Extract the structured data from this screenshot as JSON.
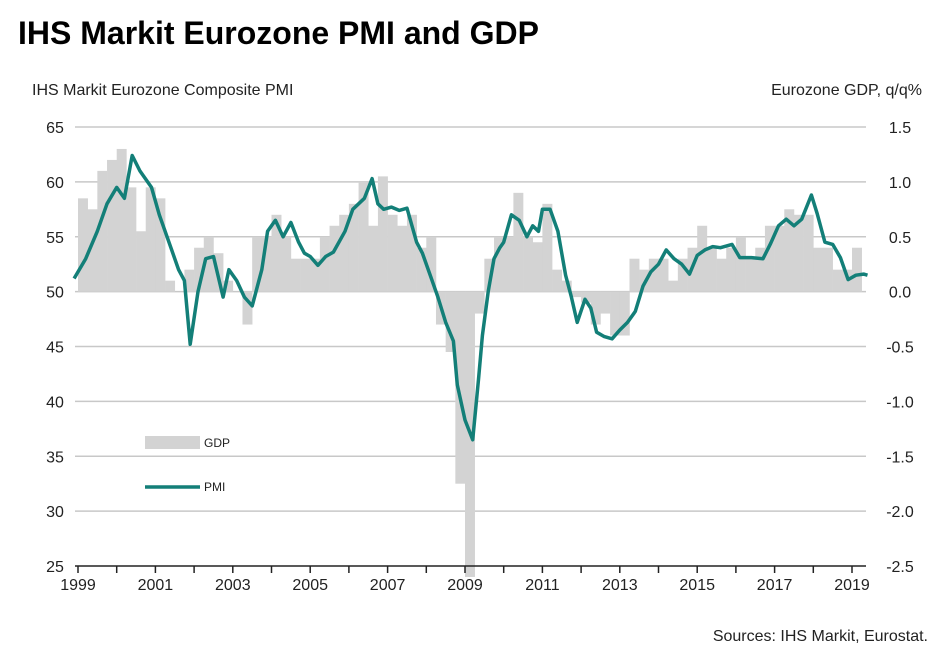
{
  "chart_data": {
    "type": "bar+line",
    "title": "IHS Markit Eurozone PMI and GDP",
    "left_axis_label": "IHS Markit Eurozone Composite PMI",
    "right_axis_label": "Eurozone GDP, q/q%",
    "source": "Sources: IHS Markit, Eurostat.",
    "left_ylim": [
      25,
      65
    ],
    "left_ticks": [
      "65",
      "60",
      "55",
      "50",
      "45",
      "40",
      "35",
      "30",
      "25"
    ],
    "right_ylim": [
      -2.5,
      1.5
    ],
    "right_ticks": [
      "1.5",
      "1.0",
      "0.5",
      "0.0",
      "-0.5",
      "-1.0",
      "-1.5",
      "-2.0",
      "-2.5"
    ],
    "x_ticks": [
      "1999",
      "2001",
      "2003",
      "2005",
      "2007",
      "2009",
      "2011",
      "2013",
      "2015",
      "2017",
      "2019"
    ],
    "grid": true,
    "legend": [
      {
        "name": "GDP",
        "kind": "bar"
      },
      {
        "name": "PMI",
        "kind": "line"
      }
    ],
    "legend_position": "bottom-left",
    "colors": {
      "gdp": "#d3d3d3",
      "pmi": "#137f78",
      "grid": "#c8c8c8"
    },
    "series": [
      {
        "name": "GDP",
        "axis": "right",
        "start_year": 1999,
        "frequency": "quarterly",
        "values": [
          0.85,
          0.75,
          1.1,
          1.2,
          1.3,
          0.95,
          0.55,
          0.95,
          0.85,
          0.1,
          0.0,
          0.2,
          0.4,
          0.5,
          0.35,
          0.1,
          0.0,
          -0.3,
          0.5,
          0.5,
          0.7,
          0.5,
          0.3,
          0.3,
          0.3,
          0.5,
          0.6,
          0.7,
          0.8,
          1.0,
          0.6,
          1.05,
          0.7,
          0.6,
          0.7,
          0.4,
          0.5,
          -0.3,
          -0.55,
          -1.75,
          -2.6,
          -0.2,
          0.3,
          0.5,
          0.5,
          0.9,
          0.5,
          0.45,
          0.8,
          0.2,
          0.1,
          -0.05,
          -0.1,
          -0.3,
          -0.2,
          -0.4,
          -0.4,
          0.3,
          0.2,
          0.3,
          0.3,
          0.1,
          0.3,
          0.4,
          0.6,
          0.4,
          0.3,
          0.4,
          0.5,
          0.3,
          0.4,
          0.6,
          0.6,
          0.75,
          0.7,
          0.7,
          0.4,
          0.4,
          0.2,
          0.2,
          0.4
        ]
      },
      {
        "name": "PMI",
        "axis": "left",
        "x": [
          1998.9,
          1999.2,
          1999.5,
          1999.75,
          2000.0,
          2000.2,
          2000.4,
          2000.6,
          2000.9,
          2001.1,
          2001.4,
          2001.6,
          2001.75,
          2001.9,
          2002.1,
          2002.3,
          2002.5,
          2002.75,
          2002.9,
          2003.1,
          2003.3,
          2003.5,
          2003.75,
          2003.9,
          2004.1,
          2004.3,
          2004.5,
          2004.7,
          2004.85,
          2005.0,
          2005.2,
          2005.4,
          2005.6,
          2005.9,
          2006.1,
          2006.4,
          2006.6,
          2006.75,
          2006.9,
          2007.1,
          2007.3,
          2007.5,
          2007.75,
          2007.9,
          2008.1,
          2008.3,
          2008.5,
          2008.7,
          2008.8,
          2009.0,
          2009.2,
          2009.35,
          2009.45,
          2009.6,
          2009.75,
          2009.9,
          2010.0,
          2010.2,
          2010.4,
          2010.6,
          2010.75,
          2010.9,
          2011.0,
          2011.2,
          2011.4,
          2011.6,
          2011.75,
          2011.9,
          2012.1,
          2012.25,
          2012.4,
          2012.6,
          2012.8,
          2013.0,
          2013.2,
          2013.4,
          2013.6,
          2013.8,
          2014.0,
          2014.2,
          2014.4,
          2014.6,
          2014.8,
          2015.0,
          2015.2,
          2015.4,
          2015.6,
          2015.9,
          2016.1,
          2016.4,
          2016.7,
          2016.9,
          2017.1,
          2017.3,
          2017.5,
          2017.7,
          2017.95,
          2018.1,
          2018.3,
          2018.5,
          2018.7,
          2018.9,
          2019.1,
          2019.3,
          2019.4
        ],
        "values": [
          51.2,
          53,
          55.5,
          58,
          59.5,
          58.5,
          62.4,
          61,
          59.5,
          57,
          54,
          52,
          51,
          45.2,
          50,
          53,
          53.2,
          49.5,
          52,
          51,
          49.5,
          48.7,
          52,
          55.5,
          56.5,
          55,
          56.3,
          54.5,
          53.5,
          53.2,
          52.4,
          53.2,
          53.6,
          55.5,
          57.5,
          58.5,
          60.3,
          58,
          57.5,
          57.7,
          57.4,
          57.6,
          54.5,
          53.5,
          51.5,
          49.5,
          47.2,
          45.5,
          41.5,
          38.3,
          36.5,
          42,
          46,
          50,
          53,
          54,
          54.5,
          57,
          56.5,
          55,
          56,
          55.5,
          57.5,
          57.5,
          55.5,
          51.5,
          49.5,
          47.2,
          49.3,
          48.5,
          46.3,
          45.9,
          45.7,
          46.5,
          47.2,
          48.2,
          50.5,
          51.8,
          52.5,
          53.8,
          53.0,
          52.5,
          51.6,
          53.3,
          53.8,
          54.1,
          54.0,
          54.3,
          53.1,
          53.1,
          53.0,
          54.4,
          56.0,
          56.6,
          56.0,
          56.6,
          58.8,
          57.1,
          54.5,
          54.3,
          53.1,
          51.1,
          51.5,
          51.6,
          51.5
        ]
      }
    ]
  }
}
